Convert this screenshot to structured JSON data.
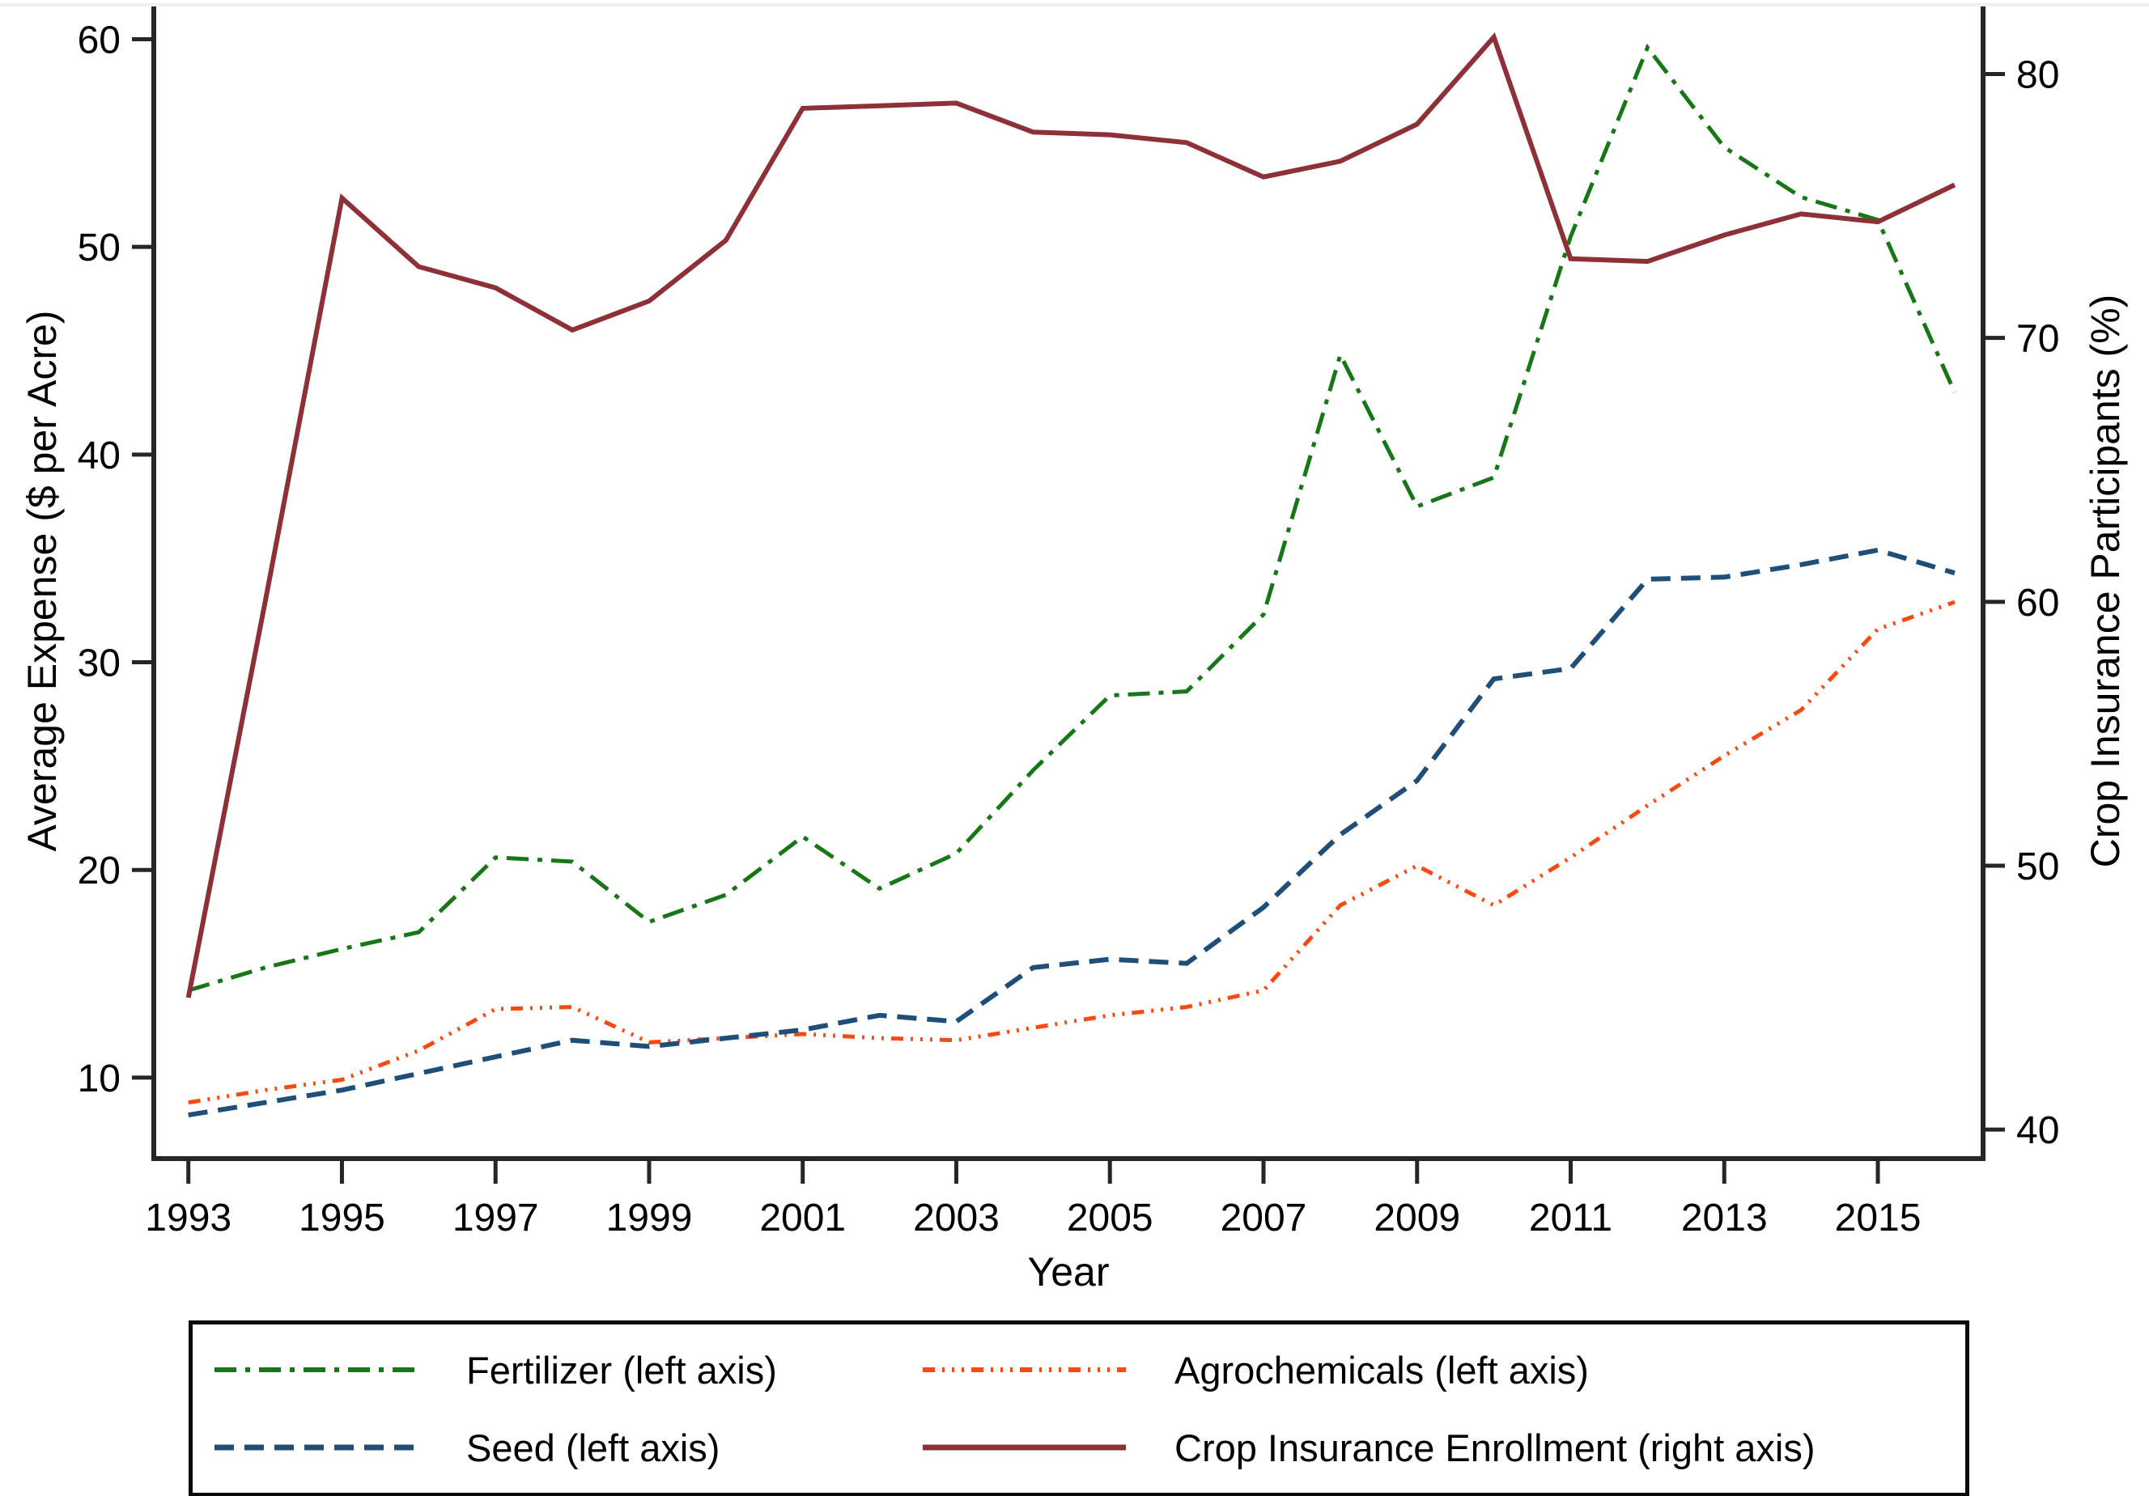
{
  "figure": {
    "background": "#ffffff",
    "axis_color": "#262626",
    "text_color": "#000000"
  },
  "chart_data": {
    "type": "line",
    "title": "",
    "x": [
      1993,
      1994,
      1995,
      1996,
      1997,
      1998,
      1999,
      2000,
      2001,
      2002,
      2003,
      2004,
      2005,
      2006,
      2007,
      2008,
      2009,
      2010,
      2011,
      2012,
      2013,
      2014,
      2015,
      2016
    ],
    "x_axis": {
      "label": "Year",
      "ticks": [
        1993,
        1995,
        1997,
        1999,
        2001,
        2003,
        2005,
        2007,
        2009,
        2011,
        2013,
        2015
      ],
      "range": [
        1992.55,
        2016.37
      ],
      "grid": false
    },
    "left_axis": {
      "label": "Average Expense ($ per Acre)",
      "ticks": [
        10,
        20,
        30,
        40,
        50,
        60
      ],
      "range": [
        6.1,
        61.5
      ],
      "grid": false
    },
    "right_axis": {
      "label": "Crop Insurance Participants (%)",
      "ticks": [
        40,
        50,
        60,
        70,
        80
      ],
      "range": [
        38.9,
        82.5
      ],
      "grid": false
    },
    "legend_position": "bottom",
    "series": [
      {
        "id": "fertilizer",
        "label": "Fertilizer (left axis)",
        "axis": "left",
        "color": "#177717",
        "line_style": "dashdot",
        "line_width": 5,
        "values": [
          14.2,
          15.3,
          16.2,
          17.0,
          20.6,
          20.4,
          17.5,
          18.8,
          21.6,
          19.1,
          20.8,
          24.8,
          28.4,
          28.6,
          32.3,
          44.8,
          37.5,
          38.9,
          50.5,
          59.6,
          54.8,
          52.4,
          51.3,
          43.0
        ]
      },
      {
        "id": "agrochemicals",
        "label": "Agrochemicals (left axis)",
        "axis": "left",
        "color": "#fb4a11",
        "line_style": "dotdash",
        "line_width": 5,
        "values": [
          8.8,
          9.4,
          9.9,
          11.3,
          13.3,
          13.4,
          11.7,
          11.9,
          12.1,
          11.9,
          11.8,
          12.4,
          13.0,
          13.4,
          14.2,
          18.3,
          20.2,
          18.3,
          20.6,
          23.1,
          25.5,
          27.7,
          31.6,
          32.9
        ]
      },
      {
        "id": "seed",
        "label": "Seed (left axis)",
        "axis": "left",
        "color": "#1f4e79",
        "line_style": "dash",
        "line_width": 6,
        "values": [
          8.2,
          8.8,
          9.4,
          10.2,
          11.0,
          11.8,
          11.5,
          11.9,
          12.3,
          13.0,
          12.7,
          15.3,
          15.7,
          15.5,
          18.2,
          21.7,
          24.3,
          29.2,
          29.7,
          34.0,
          34.1,
          34.7,
          35.4,
          34.3
        ]
      },
      {
        "id": "crop_insurance",
        "label": "Crop Insurance Enrollment (right axis)",
        "axis": "right",
        "color": "#8e3038",
        "line_style": "solid",
        "line_width": 6,
        "values": [
          45.0,
          60.0,
          75.3,
          72.7,
          71.9,
          70.3,
          71.4,
          73.7,
          78.7,
          78.8,
          78.9,
          77.8,
          77.7,
          77.4,
          76.1,
          76.7,
          78.1,
          81.4,
          73.0,
          72.9,
          73.9,
          74.7,
          74.4,
          75.8
        ]
      }
    ]
  }
}
